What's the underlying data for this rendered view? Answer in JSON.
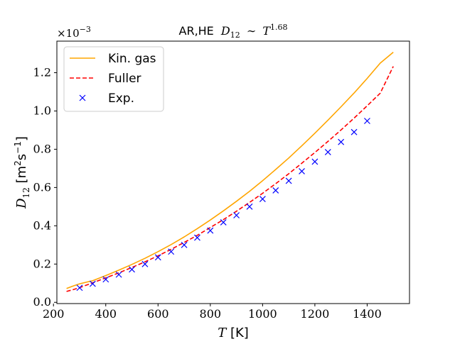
{
  "chart_data": {
    "type": "line",
    "title_text": "AR,HE",
    "title_math": "D",
    "title_math_sub": "12",
    "title_sim": "∼",
    "title_T": "T",
    "title_exp": "1.68",
    "xlabel_var": "T",
    "xlabel_unit": " [K]",
    "ylabel_var": "D",
    "ylabel_sub": "12",
    "ylabel_unit_open": " [m",
    "ylabel_unit_sup1": "2",
    "ylabel_unit_mid": "s",
    "ylabel_unit_sup2": "−1",
    "ylabel_unit_close": "]",
    "y_offset_base": "×10",
    "y_offset_exp": "−3",
    "xlim": [
      213,
      1562
    ],
    "ylim": [
      -0.0065,
      1.365
    ],
    "x_ticks": [
      200,
      400,
      600,
      800,
      1000,
      1200,
      1400
    ],
    "x_tick_labels": [
      "200",
      "400",
      "600",
      "800",
      "1000",
      "1200",
      "1400"
    ],
    "y_ticks": [
      0.0,
      0.2,
      0.4,
      0.6,
      0.8,
      1.0,
      1.2
    ],
    "y_tick_labels": [
      "0.0",
      "0.2",
      "0.4",
      "0.6",
      "0.8",
      "1.0",
      "1.2"
    ],
    "grid": false,
    "legend_position": "upper-left",
    "series": [
      {
        "name": "Kin. gas",
        "style": "solid",
        "color": "#ffa500",
        "x": [
          250,
          275,
          300,
          350,
          400,
          450,
          500,
          550,
          600,
          650,
          700,
          750,
          800,
          850,
          900,
          950,
          1000,
          1050,
          1100,
          1150,
          1200,
          1250,
          1300,
          1350,
          1400,
          1450,
          1500
        ],
        "y": [
          0.072,
          0.085,
          0.097,
          0.113,
          0.14,
          0.168,
          0.198,
          0.23,
          0.265,
          0.302,
          0.342,
          0.385,
          0.43,
          0.478,
          0.528,
          0.58,
          0.636,
          0.694,
          0.754,
          0.818,
          0.884,
          0.952,
          1.022,
          1.094,
          1.17,
          1.25,
          1.307
        ]
      },
      {
        "name": "Fuller",
        "style": "dashed",
        "color": "#ff0000",
        "x": [
          250,
          275,
          300,
          350,
          400,
          450,
          500,
          550,
          600,
          650,
          700,
          750,
          800,
          850,
          900,
          950,
          1000,
          1050,
          1100,
          1150,
          1200,
          1250,
          1300,
          1350,
          1400,
          1450,
          1500
        ],
        "y": [
          0.057,
          0.066,
          0.077,
          0.102,
          0.128,
          0.154,
          0.182,
          0.212,
          0.243,
          0.277,
          0.313,
          0.35,
          0.391,
          0.432,
          0.476,
          0.522,
          0.57,
          0.62,
          0.672,
          0.727,
          0.783,
          0.841,
          0.901,
          0.963,
          1.027,
          1.093,
          1.233
        ]
      },
      {
        "name": "Exp.",
        "style": "markers",
        "marker": "x",
        "color": "#0000ff",
        "x": [
          300,
          350,
          400,
          450,
          500,
          550,
          600,
          650,
          700,
          750,
          800,
          850,
          900,
          950,
          1000,
          1050,
          1100,
          1150,
          1200,
          1250,
          1300,
          1350,
          1400
        ],
        "y": [
          0.076,
          0.097,
          0.12,
          0.145,
          0.172,
          0.2,
          0.235,
          0.265,
          0.3,
          0.338,
          0.375,
          0.418,
          0.455,
          0.5,
          0.54,
          0.585,
          0.635,
          0.685,
          0.735,
          0.785,
          0.838,
          0.89,
          0.948
        ]
      }
    ]
  }
}
